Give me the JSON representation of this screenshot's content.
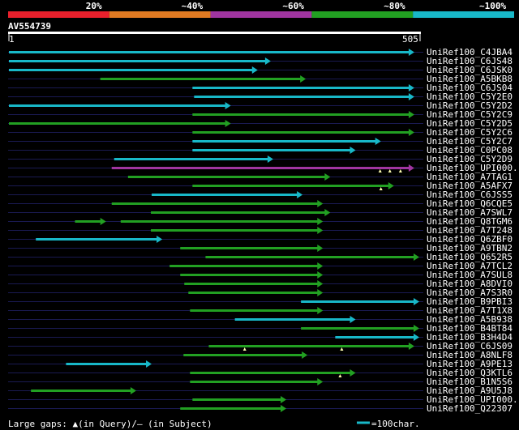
{
  "chart_data": {
    "type": "alignment-overview",
    "query_id": "AV554739",
    "query_length": 505,
    "axis_start_label": "1",
    "axis_end_label": "505",
    "identity_scale": [
      {
        "label": "20%",
        "color": "#e8202c"
      },
      {
        "label": "~40%",
        "color": "#e07a22"
      },
      {
        "label": "~60%",
        "color": "#a035a0"
      },
      {
        "label": "~80%",
        "color": "#22a022"
      },
      {
        "label": "~100%",
        "color": "#18b8c8"
      }
    ],
    "hits": [
      {
        "id": "UniRef100_C4JBA4",
        "band": 4,
        "segments": [
          [
            1,
            497
          ]
        ],
        "marks": []
      },
      {
        "id": "UniRef100_C6JS48",
        "band": 4,
        "segments": [
          [
            1,
            321
          ]
        ],
        "marks": []
      },
      {
        "id": "UniRef100_C6JSK0",
        "band": 4,
        "segments": [
          [
            1,
            305
          ]
        ],
        "marks": []
      },
      {
        "id": "UniRef100_A5BKB8",
        "band": 3,
        "segments": [
          [
            113,
            364
          ]
        ],
        "marks": []
      },
      {
        "id": "UniRef100_C6JS04",
        "band": 4,
        "segments": [
          [
            226,
            497
          ]
        ],
        "marks": []
      },
      {
        "id": "UniRef100_C5Y2E0",
        "band": 4,
        "segments": [
          [
            228,
            497
          ]
        ],
        "marks": []
      },
      {
        "id": "UniRef100_C5Y2D2",
        "band": 4,
        "segments": [
          [
            1,
            272
          ]
        ],
        "marks": []
      },
      {
        "id": "UniRef100_C5Y2C9",
        "band": 3,
        "segments": [
          [
            226,
            497
          ]
        ],
        "marks": []
      },
      {
        "id": "UniRef100_C5Y2D5",
        "band": 3,
        "segments": [
          [
            1,
            272
          ]
        ],
        "marks": []
      },
      {
        "id": "UniRef100_C5Y2C6",
        "band": 3,
        "segments": [
          [
            226,
            497
          ]
        ],
        "marks": []
      },
      {
        "id": "UniRef100_C5Y2C7",
        "band": 4,
        "segments": [
          [
            226,
            456
          ]
        ],
        "marks": []
      },
      {
        "id": "UniRef100_C0PC08",
        "band": 4,
        "segments": [
          [
            226,
            425
          ]
        ],
        "marks": []
      },
      {
        "id": "UniRef100_C5Y2D9",
        "band": 4,
        "segments": [
          [
            130,
            324
          ]
        ],
        "marks": []
      },
      {
        "id": "UniRef100_UPI000..",
        "band": 2,
        "segments": [
          [
            127,
            497
          ]
        ],
        "marks": [
          456,
          468,
          481
        ]
      },
      {
        "id": "UniRef100_A7TAG1",
        "band": 3,
        "segments": [
          [
            147,
            394
          ]
        ],
        "marks": []
      },
      {
        "id": "UniRef100_A5AFX7",
        "band": 3,
        "segments": [
          [
            226,
            472
          ]
        ],
        "marks": [
          457
        ]
      },
      {
        "id": "UniRef100_C6JSS5",
        "band": 4,
        "segments": [
          [
            176,
            360
          ]
        ],
        "marks": []
      },
      {
        "id": "UniRef100_Q6CQE5",
        "band": 3,
        "segments": [
          [
            127,
            385
          ]
        ],
        "marks": []
      },
      {
        "id": "UniRef100_A7SWL7",
        "band": 3,
        "segments": [
          [
            175,
            394
          ]
        ],
        "marks": []
      },
      {
        "id": "UniRef100_Q8TGM6",
        "band": 3,
        "segments": [
          [
            82,
            119
          ],
          [
            138,
            385
          ]
        ],
        "marks": []
      },
      {
        "id": "UniRef100_A7T248",
        "band": 3,
        "segments": [
          [
            175,
            385
          ]
        ],
        "marks": []
      },
      {
        "id": "UniRef100_Q6ZBF0",
        "band": 4,
        "segments": [
          [
            34,
            188
          ]
        ],
        "marks": []
      },
      {
        "id": "UniRef100_A9TBN2",
        "band": 3,
        "segments": [
          [
            211,
            385
          ]
        ],
        "marks": []
      },
      {
        "id": "UniRef100_Q652R5",
        "band": 3,
        "segments": [
          [
            242,
            503
          ]
        ],
        "marks": []
      },
      {
        "id": "UniRef100_A7TCL2",
        "band": 3,
        "segments": [
          [
            198,
            385
          ]
        ],
        "marks": []
      },
      {
        "id": "UniRef100_A7SUL8",
        "band": 3,
        "segments": [
          [
            211,
            385
          ]
        ],
        "marks": []
      },
      {
        "id": "UniRef100_A8DVI0",
        "band": 3,
        "segments": [
          [
            216,
            385
          ]
        ],
        "marks": []
      },
      {
        "id": "UniRef100_A7S3R0",
        "band": 3,
        "segments": [
          [
            221,
            385
          ]
        ],
        "marks": []
      },
      {
        "id": "UniRef100_B9PBI3",
        "band": 4,
        "segments": [
          [
            359,
            503
          ]
        ],
        "marks": []
      },
      {
        "id": "UniRef100_A7T1X8",
        "band": 3,
        "segments": [
          [
            223,
            385
          ]
        ],
        "marks": []
      },
      {
        "id": "UniRef100_A5B938",
        "band": 4,
        "segments": [
          [
            278,
            425
          ]
        ],
        "marks": []
      },
      {
        "id": "UniRef100_B4BT84",
        "band": 3,
        "segments": [
          [
            359,
            503
          ]
        ],
        "marks": []
      },
      {
        "id": "UniRef100_B3H4D4",
        "band": 4,
        "segments": [
          [
            401,
            503
          ]
        ],
        "marks": []
      },
      {
        "id": "UniRef100_C6JS09",
        "band": 3,
        "segments": [
          [
            246,
            497
          ]
        ],
        "marks": [
          290,
          409
        ]
      },
      {
        "id": "UniRef100_A8NLF8",
        "band": 3,
        "segments": [
          [
            215,
            366
          ]
        ],
        "marks": []
      },
      {
        "id": "UniRef100_A9PE13",
        "band": 4,
        "segments": [
          [
            71,
            175
          ]
        ],
        "marks": []
      },
      {
        "id": "UniRef100_Q3KTL6",
        "band": 3,
        "segments": [
          [
            223,
            425
          ]
        ],
        "marks": [
          407
        ]
      },
      {
        "id": "UniRef100_B1N5S6",
        "band": 3,
        "segments": [
          [
            223,
            385
          ]
        ],
        "marks": []
      },
      {
        "id": "UniRef100_A9U5J8",
        "band": 3,
        "segments": [
          [
            28,
            156
          ]
        ],
        "marks": []
      },
      {
        "id": "UniRef100_UPI000..",
        "band": 3,
        "segments": [
          [
            226,
            340
          ]
        ],
        "marks": []
      },
      {
        "id": "UniRef100_Q22307",
        "band": 3,
        "segments": [
          [
            211,
            340
          ]
        ],
        "marks": []
      }
    ],
    "footer_gaps_label": "Large gaps: ▲(in Query)/– (in Subject)",
    "footer_scale_label": "=100char."
  }
}
